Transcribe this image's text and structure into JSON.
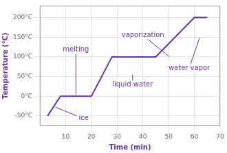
{
  "chart_data": {
    "type": "line",
    "x": [
      3,
      8,
      20,
      28,
      45,
      60,
      65
    ],
    "values": [
      -50,
      0,
      0,
      100,
      100,
      200,
      200
    ],
    "color": "#6633AA",
    "xlim": [
      0,
      70
    ],
    "ylim": [
      -75,
      230
    ],
    "xticks": [
      10,
      20,
      30,
      40,
      50,
      60,
      70
    ],
    "yticks": [
      {
        "value": -50,
        "label": "-50°C"
      },
      {
        "value": 0,
        "label": "0°C"
      },
      {
        "value": 50,
        "label": "50°C"
      },
      {
        "value": 100,
        "label": "100°C"
      },
      {
        "value": 150,
        "label": "150°C"
      },
      {
        "value": 200,
        "label": "200°C"
      }
    ],
    "x_label": "Time (min)",
    "y_label": "Temperature (°C)",
    "grid": true,
    "annotations": [
      {
        "text": "melting",
        "x": 14,
        "y": 118,
        "arrow_x": 14,
        "arrow_y": 4
      },
      {
        "text": "vaporization",
        "x": 40,
        "y": 155,
        "arrow_x": 50,
        "arrow_y": 102
      },
      {
        "text": "ice",
        "x": 17,
        "y": -57,
        "arrow_x": 6,
        "arrow_y": -28
      },
      {
        "text": "liquid water",
        "x": 36,
        "y": 30,
        "arrow_x": 36,
        "arrow_y": 55
      },
      {
        "text": "water vapor",
        "x": 58,
        "y": 72,
        "arrow_x": 62,
        "arrow_y": 148
      }
    ]
  }
}
